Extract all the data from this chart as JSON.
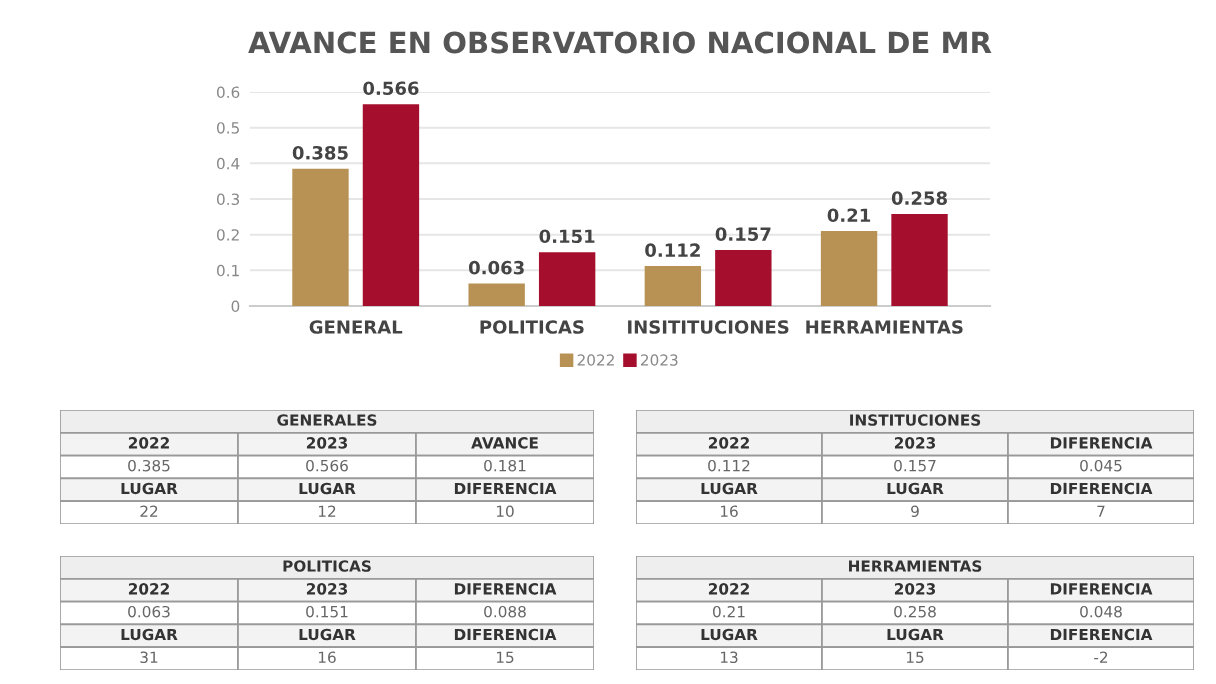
{
  "chart_data": [
    {
      "type": "bar",
      "title": "AVANCE EN OBSERVATORIO NACIONAL DE MR",
      "categories": [
        "GENERAL",
        "POLITICAS",
        "INSITITUCIONES",
        "HERRAMIENTAS"
      ],
      "series": [
        {
          "name": "2022",
          "color": "#b89254",
          "values": [
            0.385,
            0.063,
            0.112,
            0.21
          ]
        },
        {
          "name": "2023",
          "color": "#a50f2d",
          "values": [
            0.566,
            0.151,
            0.157,
            0.258
          ]
        }
      ],
      "ylim": [
        0,
        0.6
      ],
      "yticks": [
        0,
        0.1,
        0.2,
        0.3,
        0.4,
        0.5,
        0.6
      ],
      "grid": "y",
      "legend": "bottom",
      "data_labels": true
    },
    {
      "type": "other",
      "title": "GENERALES",
      "annotations": [
        "2022",
        "2023",
        "AVANCE",
        "0.385",
        "0.566",
        "0.181",
        "LUGAR",
        "LUGAR",
        "DIFERENCIA",
        "22",
        "12",
        "10"
      ]
    },
    {
      "type": "other",
      "title": "INSTITUCIONES",
      "annotations": [
        "2022",
        "2023",
        "DIFERENCIA",
        "0.112",
        "0.157",
        "0.045",
        "LUGAR",
        "LUGAR",
        "DIFERENCIA",
        "16",
        "9",
        "7"
      ]
    },
    {
      "type": "other",
      "title": "POLITICAS",
      "annotations": [
        "2022",
        "2023",
        "DIFERENCIA",
        "0.063",
        "0.151",
        "0.088",
        "LUGAR",
        "LUGAR",
        "DIFERENCIA",
        "31",
        "16",
        "15"
      ]
    },
    {
      "type": "other",
      "title": "HERRAMIENTAS",
      "annotations": [
        "2022",
        "2023",
        "DIFERENCIA",
        "0.21",
        "0.258",
        "0.048",
        "LUGAR",
        "LUGAR",
        "DIFERENCIA",
        "13",
        "15",
        "-2"
      ]
    }
  ]
}
